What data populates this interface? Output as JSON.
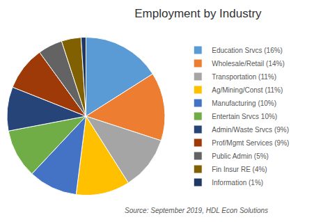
{
  "chart_data": {
    "type": "pie",
    "title": "Employment by Industry",
    "annotations": [
      "Source: September 2019, HDL Econ Solutions"
    ],
    "categories": [
      "Education Srvcs (16%)",
      "Wholesale/Retail (14%)",
      "Transportation (11%)",
      "Ag/Mining/Const (11%)",
      "Manufacturing (10%)",
      "Entertain Srvcs 10%)",
      "Admin/Waste Srvcs (9%)",
      "Prof/Mgmt Services (9%)",
      "Public Admin (5%)",
      "Fin Insur RE (4%)",
      "Information (1%)"
    ],
    "values": [
      16,
      14,
      11,
      11,
      10,
      10,
      9,
      9,
      5,
      4,
      1
    ],
    "colors": [
      "#5b9bd5",
      "#ed7d31",
      "#a5a5a5",
      "#ffc000",
      "#4472c4",
      "#70ad47",
      "#264478",
      "#9e3a08",
      "#636363",
      "#806000",
      "#1f3864"
    ],
    "legend": "right"
  }
}
